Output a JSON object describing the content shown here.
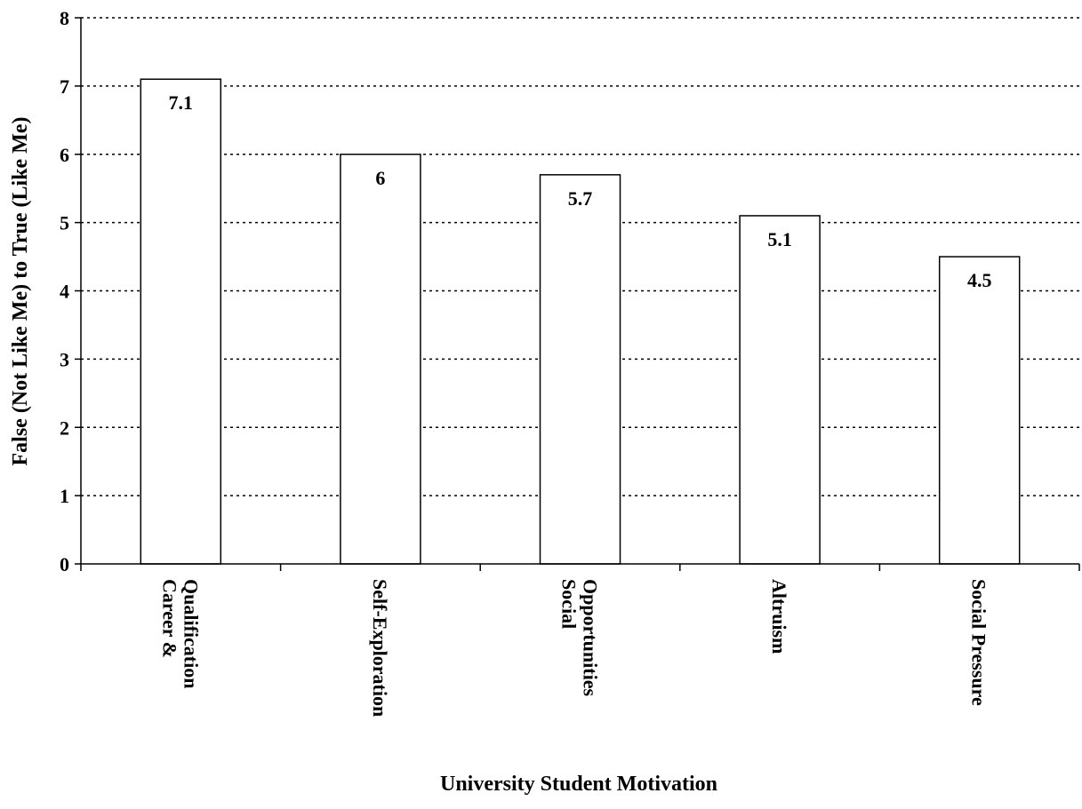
{
  "chart_data": {
    "type": "bar",
    "categories": [
      [
        "Career &",
        "Qualification"
      ],
      [
        "Self-Exploration"
      ],
      [
        "Social",
        "Opportunities"
      ],
      [
        "Altruism"
      ],
      [
        "Social Pressure"
      ]
    ],
    "values": [
      7.1,
      6,
      5.7,
      5.1,
      4.5
    ],
    "value_labels": [
      "7.1",
      "6",
      "5.7",
      "5.1",
      "4.5"
    ],
    "xlabel": "University Student Motivation",
    "ylabel": "False (Not Like Me) to True (Like Me)",
    "ylim": [
      0,
      8
    ],
    "yticks": [
      0,
      1,
      2,
      3,
      4,
      5,
      6,
      7,
      8
    ],
    "grid": true,
    "grid_style": "dotted",
    "legend": "none",
    "colors": {
      "bar_fill": "#ffffff",
      "bar_stroke": "#000000",
      "text": "#000000"
    }
  }
}
